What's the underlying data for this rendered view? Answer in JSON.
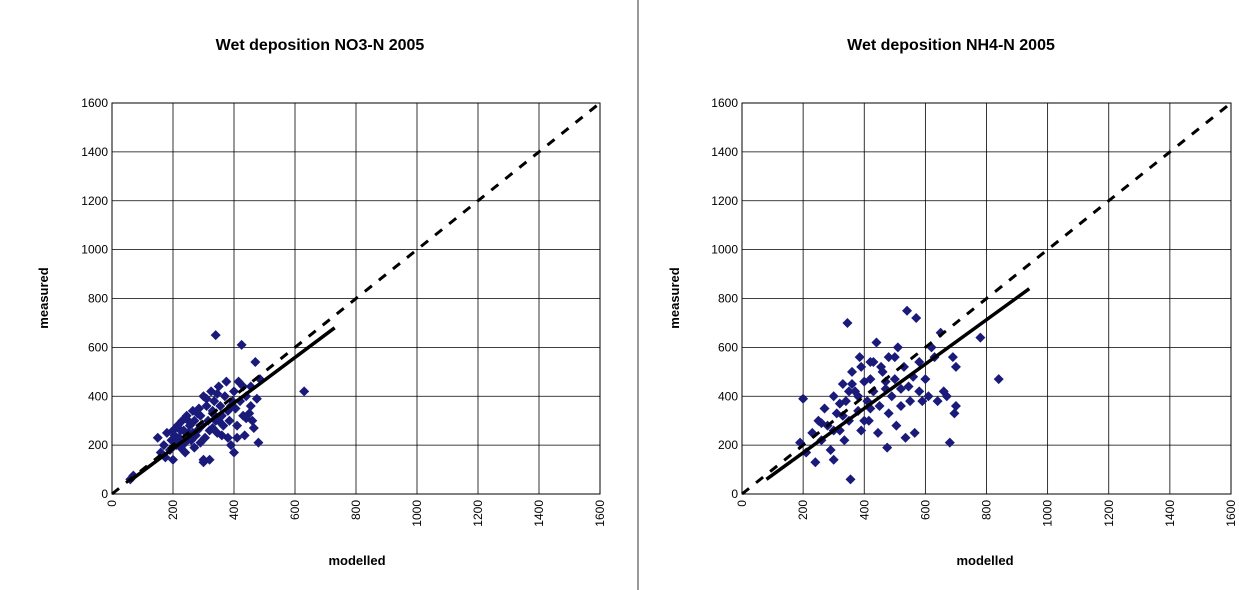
{
  "chart_data": [
    {
      "type": "scatter",
      "title": "Wet deposition NO3-N 2005",
      "xlabel": "modelled",
      "ylabel": "measured",
      "xlim": [
        0,
        1600
      ],
      "ylim": [
        0,
        1600
      ],
      "xticks": [
        0,
        200,
        400,
        600,
        800,
        1000,
        1200,
        1400,
        1600
      ],
      "yticks": [
        0,
        200,
        400,
        600,
        800,
        1000,
        1200,
        1400,
        1600
      ],
      "grid": true,
      "legend": "none",
      "colors": {
        "points": "#1a1a7a",
        "lines": "#000000",
        "grid": "#000000"
      },
      "series": [
        {
          "marker": "diamond",
          "points": [
            [
              60,
              60
            ],
            [
              70,
              75
            ],
            [
              150,
              230
            ],
            [
              160,
              170
            ],
            [
              170,
              200
            ],
            [
              175,
              150
            ],
            [
              180,
              250
            ],
            [
              190,
              180
            ],
            [
              195,
              220
            ],
            [
              200,
              260
            ],
            [
              205,
              240
            ],
            [
              210,
              200
            ],
            [
              215,
              280
            ],
            [
              220,
              230
            ],
            [
              225,
              190
            ],
            [
              230,
              300
            ],
            [
              235,
              260
            ],
            [
              240,
              210
            ],
            [
              245,
              320
            ],
            [
              250,
              250
            ],
            [
              255,
              280
            ],
            [
              260,
              220
            ],
            [
              265,
              340
            ],
            [
              270,
              300
            ],
            [
              275,
              240
            ],
            [
              280,
              260
            ],
            [
              285,
              350
            ],
            [
              290,
              320
            ],
            [
              295,
              280
            ],
            [
              300,
              400
            ],
            [
              300,
              140
            ],
            [
              305,
              230
            ],
            [
              310,
              360
            ],
            [
              315,
              300
            ],
            [
              320,
              260
            ],
            [
              325,
              420
            ],
            [
              330,
              340
            ],
            [
              335,
              380
            ],
            [
              340,
              300
            ],
            [
              345,
              250
            ],
            [
              350,
              440
            ],
            [
              355,
              360
            ],
            [
              360,
              320
            ],
            [
              365,
              280
            ],
            [
              370,
              400
            ],
            [
              375,
              460
            ],
            [
              380,
              340
            ],
            [
              385,
              300
            ],
            [
              390,
              200
            ],
            [
              395,
              380
            ],
            [
              400,
              420
            ],
            [
              400,
              170
            ],
            [
              405,
              350
            ],
            [
              410,
              280
            ],
            [
              415,
              460
            ],
            [
              420,
              380
            ],
            [
              425,
              610
            ],
            [
              430,
              320
            ],
            [
              435,
              240
            ],
            [
              440,
              400
            ],
            [
              450,
              330
            ],
            [
              455,
              440
            ],
            [
              460,
              300
            ],
            [
              465,
              270
            ],
            [
              470,
              540
            ],
            [
              475,
              390
            ],
            [
              480,
              210
            ],
            [
              485,
              470
            ],
            [
              340,
              650
            ],
            [
              300,
              130
            ],
            [
              320,
              140
            ],
            [
              630,
              420
            ],
            [
              380,
              230
            ],
            [
              200,
              140
            ],
            [
              240,
              170
            ],
            [
              270,
              190
            ],
            [
              290,
              210
            ],
            [
              330,
              270
            ],
            [
              360,
              240
            ],
            [
              410,
              230
            ],
            [
              440,
              310
            ],
            [
              455,
              360
            ],
            [
              250,
              300
            ],
            [
              280,
              330
            ],
            [
              310,
              390
            ],
            [
              345,
              410
            ],
            [
              225,
              260
            ],
            [
              215,
              215
            ],
            [
              265,
              250
            ],
            [
              330,
              330
            ],
            [
              350,
              300
            ],
            [
              390,
              360
            ],
            [
              430,
              440
            ]
          ]
        }
      ],
      "one_to_one_line": {
        "from": [
          0,
          0
        ],
        "to": [
          1600,
          1600
        ],
        "style": "dashed"
      },
      "regression_line": {
        "from": [
          60,
          55
        ],
        "to": [
          730,
          680
        ],
        "style": "solid"
      }
    },
    {
      "type": "scatter",
      "title": "Wet deposition NH4-N 2005",
      "xlabel": "modelled",
      "ylabel": "measured",
      "xlim": [
        0,
        1600
      ],
      "ylim": [
        0,
        1600
      ],
      "xticks": [
        0,
        200,
        400,
        600,
        800,
        1000,
        1200,
        1400,
        1600
      ],
      "yticks": [
        0,
        200,
        400,
        600,
        800,
        1000,
        1200,
        1400,
        1600
      ],
      "grid": true,
      "legend": "none",
      "colors": {
        "points": "#1a1a7a",
        "lines": "#000000",
        "grid": "#000000"
      },
      "series": [
        {
          "marker": "diamond",
          "points": [
            [
              190,
              210
            ],
            [
              200,
              390
            ],
            [
              210,
              170
            ],
            [
              230,
              250
            ],
            [
              240,
              130
            ],
            [
              250,
              300
            ],
            [
              260,
              220
            ],
            [
              270,
              350
            ],
            [
              280,
              280
            ],
            [
              290,
              180
            ],
            [
              300,
              400
            ],
            [
              300,
              140
            ],
            [
              310,
              330
            ],
            [
              320,
              260
            ],
            [
              330,
              450
            ],
            [
              335,
              220
            ],
            [
              340,
              380
            ],
            [
              345,
              700
            ],
            [
              350,
              300
            ],
            [
              355,
              60
            ],
            [
              360,
              500
            ],
            [
              370,
              420
            ],
            [
              380,
              340
            ],
            [
              385,
              560
            ],
            [
              390,
              260
            ],
            [
              400,
              460
            ],
            [
              410,
              380
            ],
            [
              415,
              300
            ],
            [
              420,
              540
            ],
            [
              430,
              420
            ],
            [
              440,
              620
            ],
            [
              445,
              250
            ],
            [
              450,
              360
            ],
            [
              460,
              500
            ],
            [
              470,
              430
            ],
            [
              475,
              190
            ],
            [
              480,
              560
            ],
            [
              490,
              400
            ],
            [
              500,
              470
            ],
            [
              505,
              280
            ],
            [
              510,
              600
            ],
            [
              520,
              430
            ],
            [
              530,
              520
            ],
            [
              535,
              230
            ],
            [
              540,
              750
            ],
            [
              550,
              380
            ],
            [
              560,
              480
            ],
            [
              565,
              250
            ],
            [
              570,
              720
            ],
            [
              580,
              420
            ],
            [
              590,
              380
            ],
            [
              600,
              470
            ],
            [
              610,
              400
            ],
            [
              620,
              600
            ],
            [
              630,
              560
            ],
            [
              640,
              380
            ],
            [
              650,
              660
            ],
            [
              660,
              420
            ],
            [
              670,
              400
            ],
            [
              680,
              210
            ],
            [
              690,
              560
            ],
            [
              695,
              330
            ],
            [
              700,
              520
            ],
            [
              780,
              640
            ],
            [
              840,
              470
            ],
            [
              700,
              360
            ],
            [
              360,
              450
            ],
            [
              390,
              520
            ],
            [
              420,
              350
            ],
            [
              455,
              520
            ],
            [
              480,
              330
            ],
            [
              520,
              360
            ],
            [
              545,
              440
            ],
            [
              330,
              320
            ],
            [
              300,
              260
            ],
            [
              260,
              290
            ],
            [
              420,
              470
            ],
            [
              470,
              460
            ],
            [
              380,
              400
            ],
            [
              400,
              300
            ],
            [
              430,
              540
            ],
            [
              500,
              560
            ],
            [
              350,
              420
            ],
            [
              580,
              540
            ],
            [
              320,
              370
            ]
          ]
        }
      ],
      "one_to_one_line": {
        "from": [
          0,
          0
        ],
        "to": [
          1600,
          1600
        ],
        "style": "dashed"
      },
      "regression_line": {
        "from": [
          80,
          60
        ],
        "to": [
          940,
          840
        ],
        "style": "solid"
      }
    }
  ]
}
